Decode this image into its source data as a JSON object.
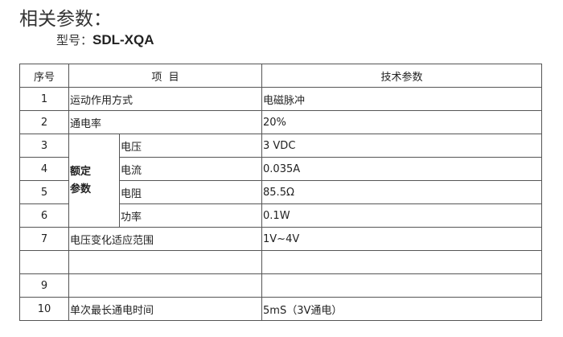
{
  "title": "相关参数：",
  "model": {
    "label": "型号：",
    "value": "SDL-XQA"
  },
  "table": {
    "headers": [
      "序号",
      "项  目",
      "技术参数"
    ],
    "rated_group": "额定\n参数",
    "rows": [
      {
        "no": "1",
        "item": "运动作用方式",
        "value": "电磁脉冲"
      },
      {
        "no": "2",
        "item": "通电率",
        "value": "20%"
      },
      {
        "no": "3",
        "item": "电压",
        "value": "3 VDC"
      },
      {
        "no": "4",
        "item": "电流",
        "value": "0.035A"
      },
      {
        "no": "5",
        "item": "电阻",
        "value": "85.5Ω"
      },
      {
        "no": "6",
        "item": "功率",
        "value": "0.1W"
      },
      {
        "no": "7",
        "item": "电压变化适应范围",
        "value": "1V~4V"
      },
      {
        "no": "",
        "item": "",
        "value": ""
      },
      {
        "no": "9",
        "item": "",
        "value": ""
      },
      {
        "no": "10",
        "item": "单次最长通电时间",
        "value": "5mS（3V通电）"
      }
    ]
  }
}
